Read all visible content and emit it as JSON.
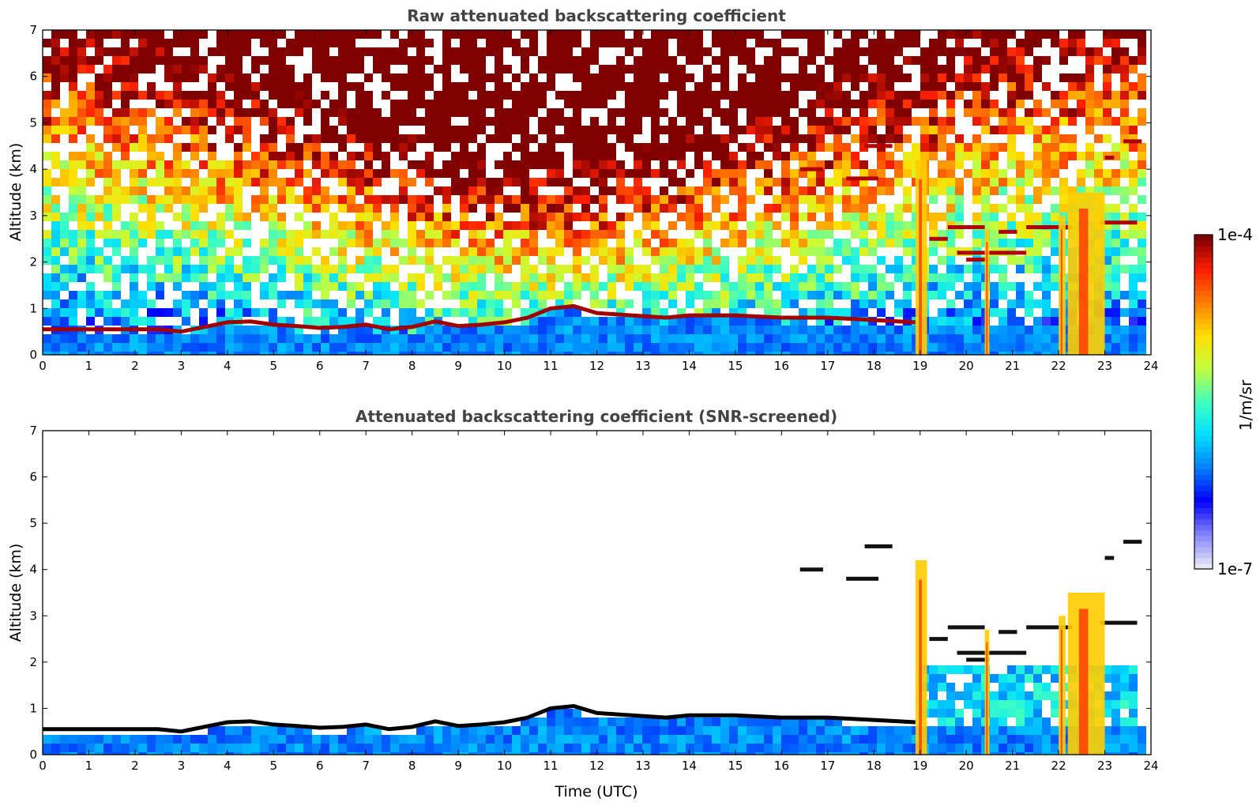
{
  "chart_data": [
    {
      "type": "heatmap",
      "title": "Raw attenuated backscattering coefficient",
      "xlabel": "",
      "ylabel": "Altitude (km)",
      "xlim": [
        0,
        24
      ],
      "ylim": [
        0,
        7
      ],
      "x_ticks": [
        "0",
        "1",
        "2",
        "3",
        "4",
        "5",
        "6",
        "7",
        "8",
        "9",
        "10",
        "11",
        "12",
        "13",
        "14",
        "15",
        "16",
        "17",
        "18",
        "19",
        "20",
        "21",
        "22",
        "23",
        "24"
      ],
      "y_ticks": [
        "0",
        "1",
        "2",
        "3",
        "4",
        "5",
        "6",
        "7"
      ],
      "colormap": "jet",
      "boundary_layer_top_km": [
        [
          0,
          0.55
        ],
        [
          1,
          0.55
        ],
        [
          1.8,
          0.55
        ],
        [
          2.5,
          0.55
        ],
        [
          3,
          0.5
        ],
        [
          3.5,
          0.6
        ],
        [
          4,
          0.7
        ],
        [
          4.5,
          0.72
        ],
        [
          5,
          0.65
        ],
        [
          5.5,
          0.62
        ],
        [
          6,
          0.58
        ],
        [
          6.5,
          0.6
        ],
        [
          7,
          0.65
        ],
        [
          7.5,
          0.55
        ],
        [
          8,
          0.6
        ],
        [
          8.5,
          0.72
        ],
        [
          9,
          0.62
        ],
        [
          9.5,
          0.65
        ],
        [
          10,
          0.7
        ],
        [
          10.5,
          0.8
        ],
        [
          11,
          1.0
        ],
        [
          11.5,
          1.05
        ],
        [
          12,
          0.9
        ],
        [
          13.5,
          0.8
        ],
        [
          14,
          0.85
        ],
        [
          15,
          0.85
        ],
        [
          16,
          0.8
        ],
        [
          17,
          0.8
        ],
        [
          18,
          0.75
        ],
        [
          18.9,
          0.7
        ]
      ],
      "cloud_layers": [
        {
          "x": [
            16.4,
            16.9
          ],
          "altitude_km": 4.0
        },
        {
          "x": [
            17.4,
            18.1
          ],
          "altitude_km": 3.8
        },
        {
          "x": [
            17.8,
            18.4
          ],
          "altitude_km": 4.5
        },
        {
          "x": [
            19.2,
            19.6
          ],
          "altitude_km": 2.5
        },
        {
          "x": [
            19.6,
            20.4
          ],
          "altitude_km": 2.75
        },
        {
          "x": [
            19.8,
            21.3
          ],
          "altitude_km": 2.2
        },
        {
          "x": [
            20.0,
            20.5
          ],
          "altitude_km": 2.05
        },
        {
          "x": [
            20.7,
            21.1
          ],
          "altitude_km": 2.65
        },
        {
          "x": [
            21.3,
            22.3
          ],
          "altitude_km": 2.75
        },
        {
          "x": [
            22.9,
            23.7
          ],
          "altitude_km": 2.85
        },
        {
          "x": [
            23.0,
            23.2
          ],
          "altitude_km": 4.25
        },
        {
          "x": [
            23.4,
            23.8
          ],
          "altitude_km": 4.6
        }
      ],
      "precipitation_shafts": [
        {
          "x": [
            18.9,
            19.15
          ],
          "top_km": 4.2
        },
        {
          "x": [
            20.4,
            20.5
          ],
          "top_km": 2.7
        },
        {
          "x": [
            22.0,
            22.15
          ],
          "top_km": 3.0
        },
        {
          "x": [
            22.2,
            23.0
          ],
          "top_km": 3.5
        }
      ]
    },
    {
      "type": "heatmap",
      "title": "Attenuated backscattering coefficient (SNR-screened)",
      "xlabel": "Time (UTC)",
      "ylabel": "Altitude (km)",
      "xlim": [
        0,
        24
      ],
      "ylim": [
        0,
        7
      ],
      "x_ticks": [
        "0",
        "1",
        "2",
        "3",
        "4",
        "5",
        "6",
        "7",
        "8",
        "9",
        "10",
        "11",
        "12",
        "13",
        "14",
        "15",
        "16",
        "17",
        "18",
        "19",
        "20",
        "21",
        "22",
        "23",
        "24"
      ],
      "y_ticks": [
        "0",
        "1",
        "2",
        "3",
        "4",
        "5",
        "6",
        "7"
      ],
      "colormap": "jet",
      "boundary_layer_top_km": [
        [
          0,
          0.55
        ],
        [
          1,
          0.55
        ],
        [
          1.8,
          0.55
        ],
        [
          2.5,
          0.55
        ],
        [
          3,
          0.5
        ],
        [
          3.5,
          0.6
        ],
        [
          4,
          0.7
        ],
        [
          4.5,
          0.72
        ],
        [
          5,
          0.65
        ],
        [
          5.5,
          0.62
        ],
        [
          6,
          0.58
        ],
        [
          6.5,
          0.6
        ],
        [
          7,
          0.65
        ],
        [
          7.5,
          0.55
        ],
        [
          8,
          0.6
        ],
        [
          8.5,
          0.72
        ],
        [
          9,
          0.62
        ],
        [
          9.5,
          0.65
        ],
        [
          10,
          0.7
        ],
        [
          10.5,
          0.8
        ],
        [
          11,
          1.0
        ],
        [
          11.5,
          1.05
        ],
        [
          12,
          0.9
        ],
        [
          13.5,
          0.8
        ],
        [
          14,
          0.85
        ],
        [
          15,
          0.85
        ],
        [
          16,
          0.8
        ],
        [
          17,
          0.8
        ],
        [
          18,
          0.75
        ],
        [
          18.9,
          0.7
        ]
      ],
      "cloud_layers": [
        {
          "x": [
            16.4,
            16.9
          ],
          "altitude_km": 4.0
        },
        {
          "x": [
            17.4,
            18.1
          ],
          "altitude_km": 3.8
        },
        {
          "x": [
            17.8,
            18.4
          ],
          "altitude_km": 4.5
        },
        {
          "x": [
            19.2,
            19.6
          ],
          "altitude_km": 2.5
        },
        {
          "x": [
            19.6,
            20.4
          ],
          "altitude_km": 2.75
        },
        {
          "x": [
            19.8,
            21.3
          ],
          "altitude_km": 2.2
        },
        {
          "x": [
            20.0,
            20.5
          ],
          "altitude_km": 2.05
        },
        {
          "x": [
            20.7,
            21.1
          ],
          "altitude_km": 2.65
        },
        {
          "x": [
            21.3,
            22.3
          ],
          "altitude_km": 2.75
        },
        {
          "x": [
            22.9,
            23.7
          ],
          "altitude_km": 2.85
        },
        {
          "x": [
            23.0,
            23.2
          ],
          "altitude_km": 4.25
        },
        {
          "x": [
            23.4,
            23.8
          ],
          "altitude_km": 4.6
        }
      ],
      "precipitation_shafts": [
        {
          "x": [
            18.9,
            19.15
          ],
          "top_km": 4.2
        },
        {
          "x": [
            20.4,
            20.5
          ],
          "top_km": 2.7
        },
        {
          "x": [
            22.0,
            22.15
          ],
          "top_km": 3.0
        },
        {
          "x": [
            22.2,
            23.0
          ],
          "top_km": 3.5
        }
      ],
      "aerosol_region_after_19h": {
        "x": [
          19.0,
          23.8
        ],
        "top_km": 2.0
      }
    }
  ],
  "colorbar": {
    "label": "1/m/sr",
    "max_label": "1e-4",
    "min_label": "1e-7",
    "log_range": [
      -7,
      -4
    ],
    "colors": [
      "#e6e6f5",
      "#8080ff",
      "#0000ff",
      "#0080ff",
      "#00e0ff",
      "#40ffc0",
      "#c0ff40",
      "#ffe000",
      "#ff8000",
      "#ff2000",
      "#800000"
    ]
  }
}
